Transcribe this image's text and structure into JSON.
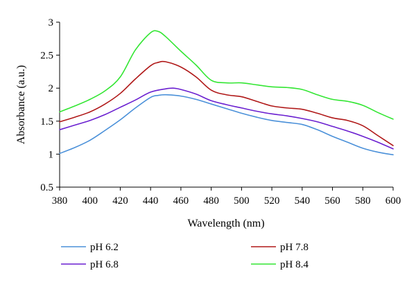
{
  "chart_data": {
    "type": "line",
    "title": "",
    "xlabel": "Wavelength (nm)",
    "ylabel": "Absorbance (a.u.)",
    "xlim": [
      380,
      600
    ],
    "ylim": [
      0.5,
      3
    ],
    "x_ticks": [
      380,
      400,
      420,
      440,
      460,
      480,
      500,
      520,
      540,
      560,
      580,
      600
    ],
    "y_ticks": [
      "0.5",
      "1",
      "1.5",
      "2",
      "2.5",
      "3"
    ],
    "y_tick_values": [
      0.5,
      1,
      1.5,
      2,
      2.5,
      3
    ],
    "grid": false,
    "legend_position": "bottom",
    "series": [
      {
        "name": "pH 6.2",
        "color": "#4a90d9",
        "points": [
          [
            380,
            1.01
          ],
          [
            390,
            1.1
          ],
          [
            400,
            1.21
          ],
          [
            410,
            1.36
          ],
          [
            420,
            1.52
          ],
          [
            430,
            1.7
          ],
          [
            440,
            1.86
          ],
          [
            445,
            1.89
          ],
          [
            450,
            1.9
          ],
          [
            460,
            1.88
          ],
          [
            470,
            1.83
          ],
          [
            480,
            1.76
          ],
          [
            490,
            1.69
          ],
          [
            500,
            1.62
          ],
          [
            510,
            1.56
          ],
          [
            520,
            1.51
          ],
          [
            530,
            1.48
          ],
          [
            540,
            1.45
          ],
          [
            550,
            1.37
          ],
          [
            560,
            1.27
          ],
          [
            570,
            1.18
          ],
          [
            580,
            1.09
          ],
          [
            590,
            1.03
          ],
          [
            600,
            0.99
          ]
        ]
      },
      {
        "name": "pH 6.8",
        "color": "#6a1fd0",
        "points": [
          [
            380,
            1.37
          ],
          [
            390,
            1.44
          ],
          [
            400,
            1.51
          ],
          [
            410,
            1.6
          ],
          [
            420,
            1.71
          ],
          [
            430,
            1.82
          ],
          [
            440,
            1.94
          ],
          [
            450,
            1.99
          ],
          [
            455,
            2.0
          ],
          [
            460,
            1.98
          ],
          [
            470,
            1.91
          ],
          [
            480,
            1.81
          ],
          [
            490,
            1.75
          ],
          [
            500,
            1.7
          ],
          [
            510,
            1.65
          ],
          [
            520,
            1.61
          ],
          [
            530,
            1.58
          ],
          [
            540,
            1.54
          ],
          [
            550,
            1.49
          ],
          [
            560,
            1.42
          ],
          [
            570,
            1.35
          ],
          [
            580,
            1.27
          ],
          [
            590,
            1.18
          ],
          [
            600,
            1.08
          ]
        ]
      },
      {
        "name": "pH 7.8",
        "color": "#b01818",
        "points": [
          [
            380,
            1.49
          ],
          [
            390,
            1.56
          ],
          [
            400,
            1.64
          ],
          [
            410,
            1.76
          ],
          [
            420,
            1.92
          ],
          [
            430,
            2.14
          ],
          [
            440,
            2.34
          ],
          [
            445,
            2.39
          ],
          [
            450,
            2.4
          ],
          [
            460,
            2.32
          ],
          [
            470,
            2.17
          ],
          [
            480,
            1.97
          ],
          [
            490,
            1.9
          ],
          [
            500,
            1.87
          ],
          [
            510,
            1.8
          ],
          [
            520,
            1.73
          ],
          [
            530,
            1.7
          ],
          [
            540,
            1.68
          ],
          [
            550,
            1.62
          ],
          [
            560,
            1.55
          ],
          [
            570,
            1.51
          ],
          [
            580,
            1.43
          ],
          [
            590,
            1.28
          ],
          [
            600,
            1.13
          ]
        ]
      },
      {
        "name": "pH 8.4",
        "color": "#33e633",
        "points": [
          [
            380,
            1.64
          ],
          [
            390,
            1.73
          ],
          [
            400,
            1.83
          ],
          [
            410,
            1.96
          ],
          [
            420,
            2.17
          ],
          [
            430,
            2.58
          ],
          [
            440,
            2.84
          ],
          [
            445,
            2.86
          ],
          [
            450,
            2.78
          ],
          [
            460,
            2.56
          ],
          [
            470,
            2.35
          ],
          [
            480,
            2.12
          ],
          [
            490,
            2.08
          ],
          [
            500,
            2.08
          ],
          [
            510,
            2.05
          ],
          [
            520,
            2.02
          ],
          [
            530,
            2.01
          ],
          [
            540,
            1.98
          ],
          [
            550,
            1.9
          ],
          [
            560,
            1.83
          ],
          [
            570,
            1.8
          ],
          [
            580,
            1.74
          ],
          [
            590,
            1.63
          ],
          [
            600,
            1.53
          ]
        ]
      }
    ]
  }
}
